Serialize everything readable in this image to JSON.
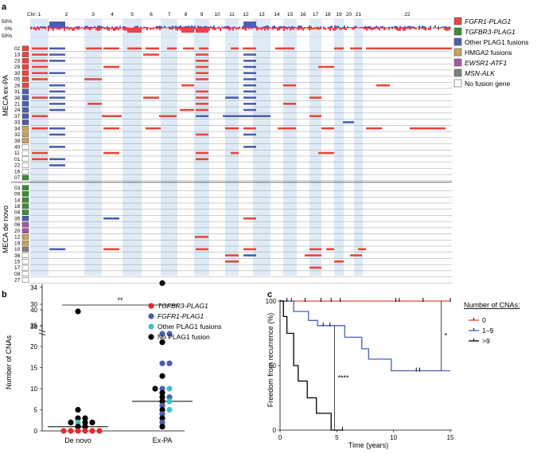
{
  "panel_a": {
    "label": "a",
    "chr_prefix": "Chr:",
    "chromosomes": [
      "1",
      "2",
      "3",
      "4",
      "5",
      "6",
      "7",
      "8",
      "9",
      "10",
      "11",
      "12",
      "13",
      "14",
      "15",
      "16",
      "17",
      "18",
      "19",
      "20",
      "21",
      "22"
    ],
    "summary_axis": [
      "50%",
      "0%",
      "50%"
    ],
    "group_labels": [
      "MECA ex-PA",
      "MECA de novo"
    ],
    "legend": [
      {
        "label": "FGFR1-PLAG1",
        "color": "#e8463c",
        "italic": true
      },
      {
        "label": "TGFBR3-PLAG1",
        "color": "#3d8c3a",
        "italic": true
      },
      {
        "label": "Other PLAG1 fusions",
        "color": "#4b5fb0",
        "italic": false
      },
      {
        "label": "HMGA2 fusions",
        "color": "#c8a45a",
        "italic": false
      },
      {
        "label": "EWSR1-ATF1",
        "color": "#a756a8",
        "italic": true
      },
      {
        "label": "MSN-ALK",
        "color": "#7f7f7f",
        "italic": true
      },
      {
        "label": "No fusion gene",
        "color": "#ffffff",
        "italic": false
      }
    ],
    "colors": {
      "gain": "#4b5fb0",
      "loss": "#e8463c",
      "band": "#deebf7"
    },
    "samples": [
      {
        "id": "02",
        "fusion": "FGFR1-PLAG1",
        "group": "ex-PA"
      },
      {
        "id": "13",
        "fusion": "FGFR1-PLAG1",
        "group": "ex-PA"
      },
      {
        "id": "23",
        "fusion": "FGFR1-PLAG1",
        "group": "ex-PA"
      },
      {
        "id": "29",
        "fusion": "FGFR1-PLAG1",
        "group": "ex-PA"
      },
      {
        "id": "30",
        "fusion": "FGFR1-PLAG1",
        "group": "ex-PA"
      },
      {
        "id": "05",
        "fusion": "FGFR1-PLAG1",
        "group": "ex-PA"
      },
      {
        "id": "26",
        "fusion": "FGFR1-PLAG1",
        "group": "ex-PA"
      },
      {
        "id": "31",
        "fusion": "Other PLAG1 fusions",
        "group": "ex-PA"
      },
      {
        "id": "38",
        "fusion": "Other PLAG1 fusions",
        "group": "ex-PA"
      },
      {
        "id": "21",
        "fusion": "Other PLAG1 fusions",
        "group": "ex-PA"
      },
      {
        "id": "24",
        "fusion": "Other PLAG1 fusions",
        "group": "ex-PA"
      },
      {
        "id": "37",
        "fusion": "Other PLAG1 fusions",
        "group": "ex-PA"
      },
      {
        "id": "33",
        "fusion": "Other PLAG1 fusions",
        "group": "ex-PA"
      },
      {
        "id": "34",
        "fusion": "HMGA2 fusions",
        "group": "ex-PA"
      },
      {
        "id": "32",
        "fusion": "HMGA2 fusions",
        "group": "ex-PA"
      },
      {
        "id": "39",
        "fusion": "HMGA2 fusions",
        "group": "ex-PA"
      },
      {
        "id": "40",
        "fusion": "No fusion gene",
        "group": "ex-PA"
      },
      {
        "id": "11",
        "fusion": "No fusion gene",
        "group": "ex-PA"
      },
      {
        "id": "01",
        "fusion": "No fusion gene",
        "group": "ex-PA"
      },
      {
        "id": "22",
        "fusion": "No fusion gene",
        "group": "ex-PA"
      },
      {
        "id": "16",
        "fusion": "No fusion gene",
        "group": "ex-PA"
      },
      {
        "id": "07",
        "fusion": "TGFBR3-PLAG1",
        "group": "ex-PA"
      },
      {
        "id": "03",
        "fusion": "TGFBR3-PLAG1",
        "group": "de novo"
      },
      {
        "id": "09",
        "fusion": "TGFBR3-PLAG1",
        "group": "de novo"
      },
      {
        "id": "14",
        "fusion": "TGFBR3-PLAG1",
        "group": "de novo"
      },
      {
        "id": "18",
        "fusion": "TGFBR3-PLAG1",
        "group": "de novo"
      },
      {
        "id": "04",
        "fusion": "TGFBR3-PLAG1",
        "group": "de novo"
      },
      {
        "id": "35",
        "fusion": "Other PLAG1 fusions",
        "group": "de novo"
      },
      {
        "id": "06",
        "fusion": "EWSR1-ATF1",
        "group": "de novo"
      },
      {
        "id": "20",
        "fusion": "EWSR1-ATF1",
        "group": "de novo"
      },
      {
        "id": "12",
        "fusion": "HMGA2 fusions",
        "group": "de novo"
      },
      {
        "id": "19",
        "fusion": "HMGA2 fusions",
        "group": "de novo"
      },
      {
        "id": "10",
        "fusion": "MSN-ALK",
        "group": "de novo"
      },
      {
        "id": "36",
        "fusion": "No fusion gene",
        "group": "de novo"
      },
      {
        "id": "15",
        "fusion": "No fusion gene",
        "group": "de novo"
      },
      {
        "id": "17",
        "fusion": "No fusion gene",
        "group": "de novo"
      },
      {
        "id": "08",
        "fusion": "No fusion gene",
        "group": "de novo"
      },
      {
        "id": "27",
        "fusion": "No fusion gene",
        "group": "de novo"
      }
    ]
  },
  "panel_b": {
    "label": "b",
    "ylabel": "Number of CNAs",
    "significance": "**",
    "groups": [
      "De novo",
      "Ex-PA"
    ],
    "yticks_lower": [
      "0",
      "5",
      "10",
      "15",
      "20",
      "25",
      "30",
      "34"
    ],
    "yticks_upper": [
      "38",
      "40"
    ],
    "legend": [
      {
        "label": "TGFBR3-PLAG1",
        "color": "#e8282c",
        "italic": true
      },
      {
        "label": "FGFR1-PLAG1",
        "color": "#4b5fb0",
        "italic": true
      },
      {
        "label": "Other PLAG1 fusions",
        "color": "#3ec2c8",
        "italic": false
      },
      {
        "label": "No PLAG1 fusion",
        "color": "#000000",
        "italic": false
      }
    ],
    "medians": [
      1,
      7
    ],
    "points": [
      {
        "group": "De novo",
        "value": 39,
        "category": "No PLAG1 fusion"
      },
      {
        "group": "De novo",
        "value": 5,
        "category": "No PLAG1 fusion"
      },
      {
        "group": "De novo",
        "value": 3,
        "category": "No PLAG1 fusion"
      },
      {
        "group": "De novo",
        "value": 3,
        "category": "No PLAG1 fusion"
      },
      {
        "group": "De novo",
        "value": 2,
        "category": "Other PLAG1 fusions"
      },
      {
        "group": "De novo",
        "value": 2,
        "category": "No PLAG1 fusion"
      },
      {
        "group": "De novo",
        "value": 2,
        "category": "No PLAG1 fusion"
      },
      {
        "group": "De novo",
        "value": 2,
        "category": "No PLAG1 fusion"
      },
      {
        "group": "De novo",
        "value": 1,
        "category": "No PLAG1 fusion"
      },
      {
        "group": "De novo",
        "value": 1,
        "category": "No PLAG1 fusion"
      },
      {
        "group": "De novo",
        "value": 0,
        "category": "TGFBR3-PLAG1"
      },
      {
        "group": "De novo",
        "value": 0,
        "category": "TGFBR3-PLAG1"
      },
      {
        "group": "De novo",
        "value": 0,
        "category": "TGFBR3-PLAG1"
      },
      {
        "group": "De novo",
        "value": 0,
        "category": "TGFBR3-PLAG1"
      },
      {
        "group": "De novo",
        "value": 0,
        "category": "TGFBR3-PLAG1"
      },
      {
        "group": "De novo",
        "value": 0,
        "category": "TGFBR3-PLAG1"
      },
      {
        "group": "Ex-PA",
        "value": 35,
        "category": "No PLAG1 fusion"
      },
      {
        "group": "Ex-PA",
        "value": 23,
        "category": "FGFR1-PLAG1"
      },
      {
        "group": "Ex-PA",
        "value": 23,
        "category": "FGFR1-PLAG1"
      },
      {
        "group": "Ex-PA",
        "value": 21,
        "category": "No PLAG1 fusion"
      },
      {
        "group": "Ex-PA",
        "value": 16,
        "category": "FGFR1-PLAG1"
      },
      {
        "group": "Ex-PA",
        "value": 16,
        "category": "FGFR1-PLAG1"
      },
      {
        "group": "Ex-PA",
        "value": 13,
        "category": "No PLAG1 fusion"
      },
      {
        "group": "Ex-PA",
        "value": 10,
        "category": "FGFR1-PLAG1"
      },
      {
        "group": "Ex-PA",
        "value": 10,
        "category": "Other PLAG1 fusions"
      },
      {
        "group": "Ex-PA",
        "value": 10,
        "category": "No PLAG1 fusion"
      },
      {
        "group": "Ex-PA",
        "value": 9,
        "category": "No PLAG1 fusion"
      },
      {
        "group": "Ex-PA",
        "value": 8,
        "category": "No PLAG1 fusion"
      },
      {
        "group": "Ex-PA",
        "value": 8,
        "category": "FGFR1-PLAG1"
      },
      {
        "group": "Ex-PA",
        "value": 7,
        "category": "No PLAG1 fusion"
      },
      {
        "group": "Ex-PA",
        "value": 7,
        "category": "Other PLAG1 fusions"
      },
      {
        "group": "Ex-PA",
        "value": 6,
        "category": "FGFR1-PLAG1"
      },
      {
        "group": "Ex-PA",
        "value": 5,
        "category": "No PLAG1 fusion"
      },
      {
        "group": "Ex-PA",
        "value": 5,
        "category": "Other PLAG1 fusions"
      },
      {
        "group": "Ex-PA",
        "value": 4,
        "category": "FGFR1-PLAG1"
      },
      {
        "group": "Ex-PA",
        "value": 3,
        "category": "No PLAG1 fusion"
      },
      {
        "group": "Ex-PA",
        "value": 2,
        "category": "FGFR1-PLAG1"
      },
      {
        "group": "Ex-PA",
        "value": 1,
        "category": "No PLAG1 fusion"
      }
    ]
  },
  "panel_c": {
    "label": "c",
    "ylabel": "Freedom from recurrence (%)",
    "xlabel": "Time (years)",
    "xticks": [
      "0",
      "5",
      "10",
      "15"
    ],
    "yticks": [
      "0",
      "50",
      "100"
    ],
    "legend_title": "Number of CNAs:",
    "significance": [
      {
        "label": "*",
        "x_years": 14.2,
        "from": 100,
        "to": 46
      },
      {
        "label": "****",
        "x_years": 4.8,
        "from": 81,
        "to": 0
      }
    ],
    "series": [
      {
        "name": "0",
        "color": "#e8463c",
        "steps": [
          [
            0,
            100
          ],
          [
            15,
            100
          ]
        ],
        "censored": [
          [
            1,
            100
          ],
          [
            2.2,
            100
          ],
          [
            3.6,
            100
          ],
          [
            4.5,
            100
          ],
          [
            5.3,
            100
          ],
          [
            10.2,
            100
          ],
          [
            10.5,
            100
          ],
          [
            12.6,
            100
          ],
          [
            15,
            100
          ]
        ]
      },
      {
        "name": "1–9",
        "color": "#4b5fb0",
        "steps": [
          [
            0,
            100
          ],
          [
            1.2,
            100
          ],
          [
            1.2,
            92
          ],
          [
            2.5,
            92
          ],
          [
            2.5,
            85
          ],
          [
            3.3,
            85
          ],
          [
            3.3,
            81
          ],
          [
            5.7,
            81
          ],
          [
            5.7,
            72
          ],
          [
            7.2,
            72
          ],
          [
            7.2,
            63
          ],
          [
            7.8,
            63
          ],
          [
            7.8,
            55
          ],
          [
            9.8,
            55
          ],
          [
            9.8,
            46
          ],
          [
            15,
            46
          ]
        ],
        "censored": [
          [
            0.6,
            100
          ],
          [
            3.8,
            81
          ],
          [
            4.4,
            81
          ],
          [
            12,
            46
          ],
          [
            12.3,
            46
          ]
        ]
      },
      {
        "name": ">9",
        "color": "#000000",
        "steps": [
          [
            0,
            100
          ],
          [
            0.3,
            100
          ],
          [
            0.3,
            88
          ],
          [
            0.6,
            88
          ],
          [
            0.6,
            75
          ],
          [
            1.2,
            75
          ],
          [
            1.2,
            50
          ],
          [
            1.6,
            50
          ],
          [
            1.6,
            38
          ],
          [
            2.4,
            38
          ],
          [
            2.4,
            25
          ],
          [
            3.2,
            25
          ],
          [
            3.2,
            13
          ],
          [
            4.5,
            13
          ],
          [
            4.5,
            0
          ],
          [
            5.5,
            0
          ]
        ],
        "censored": [
          [
            5.5,
            0
          ]
        ]
      }
    ]
  }
}
